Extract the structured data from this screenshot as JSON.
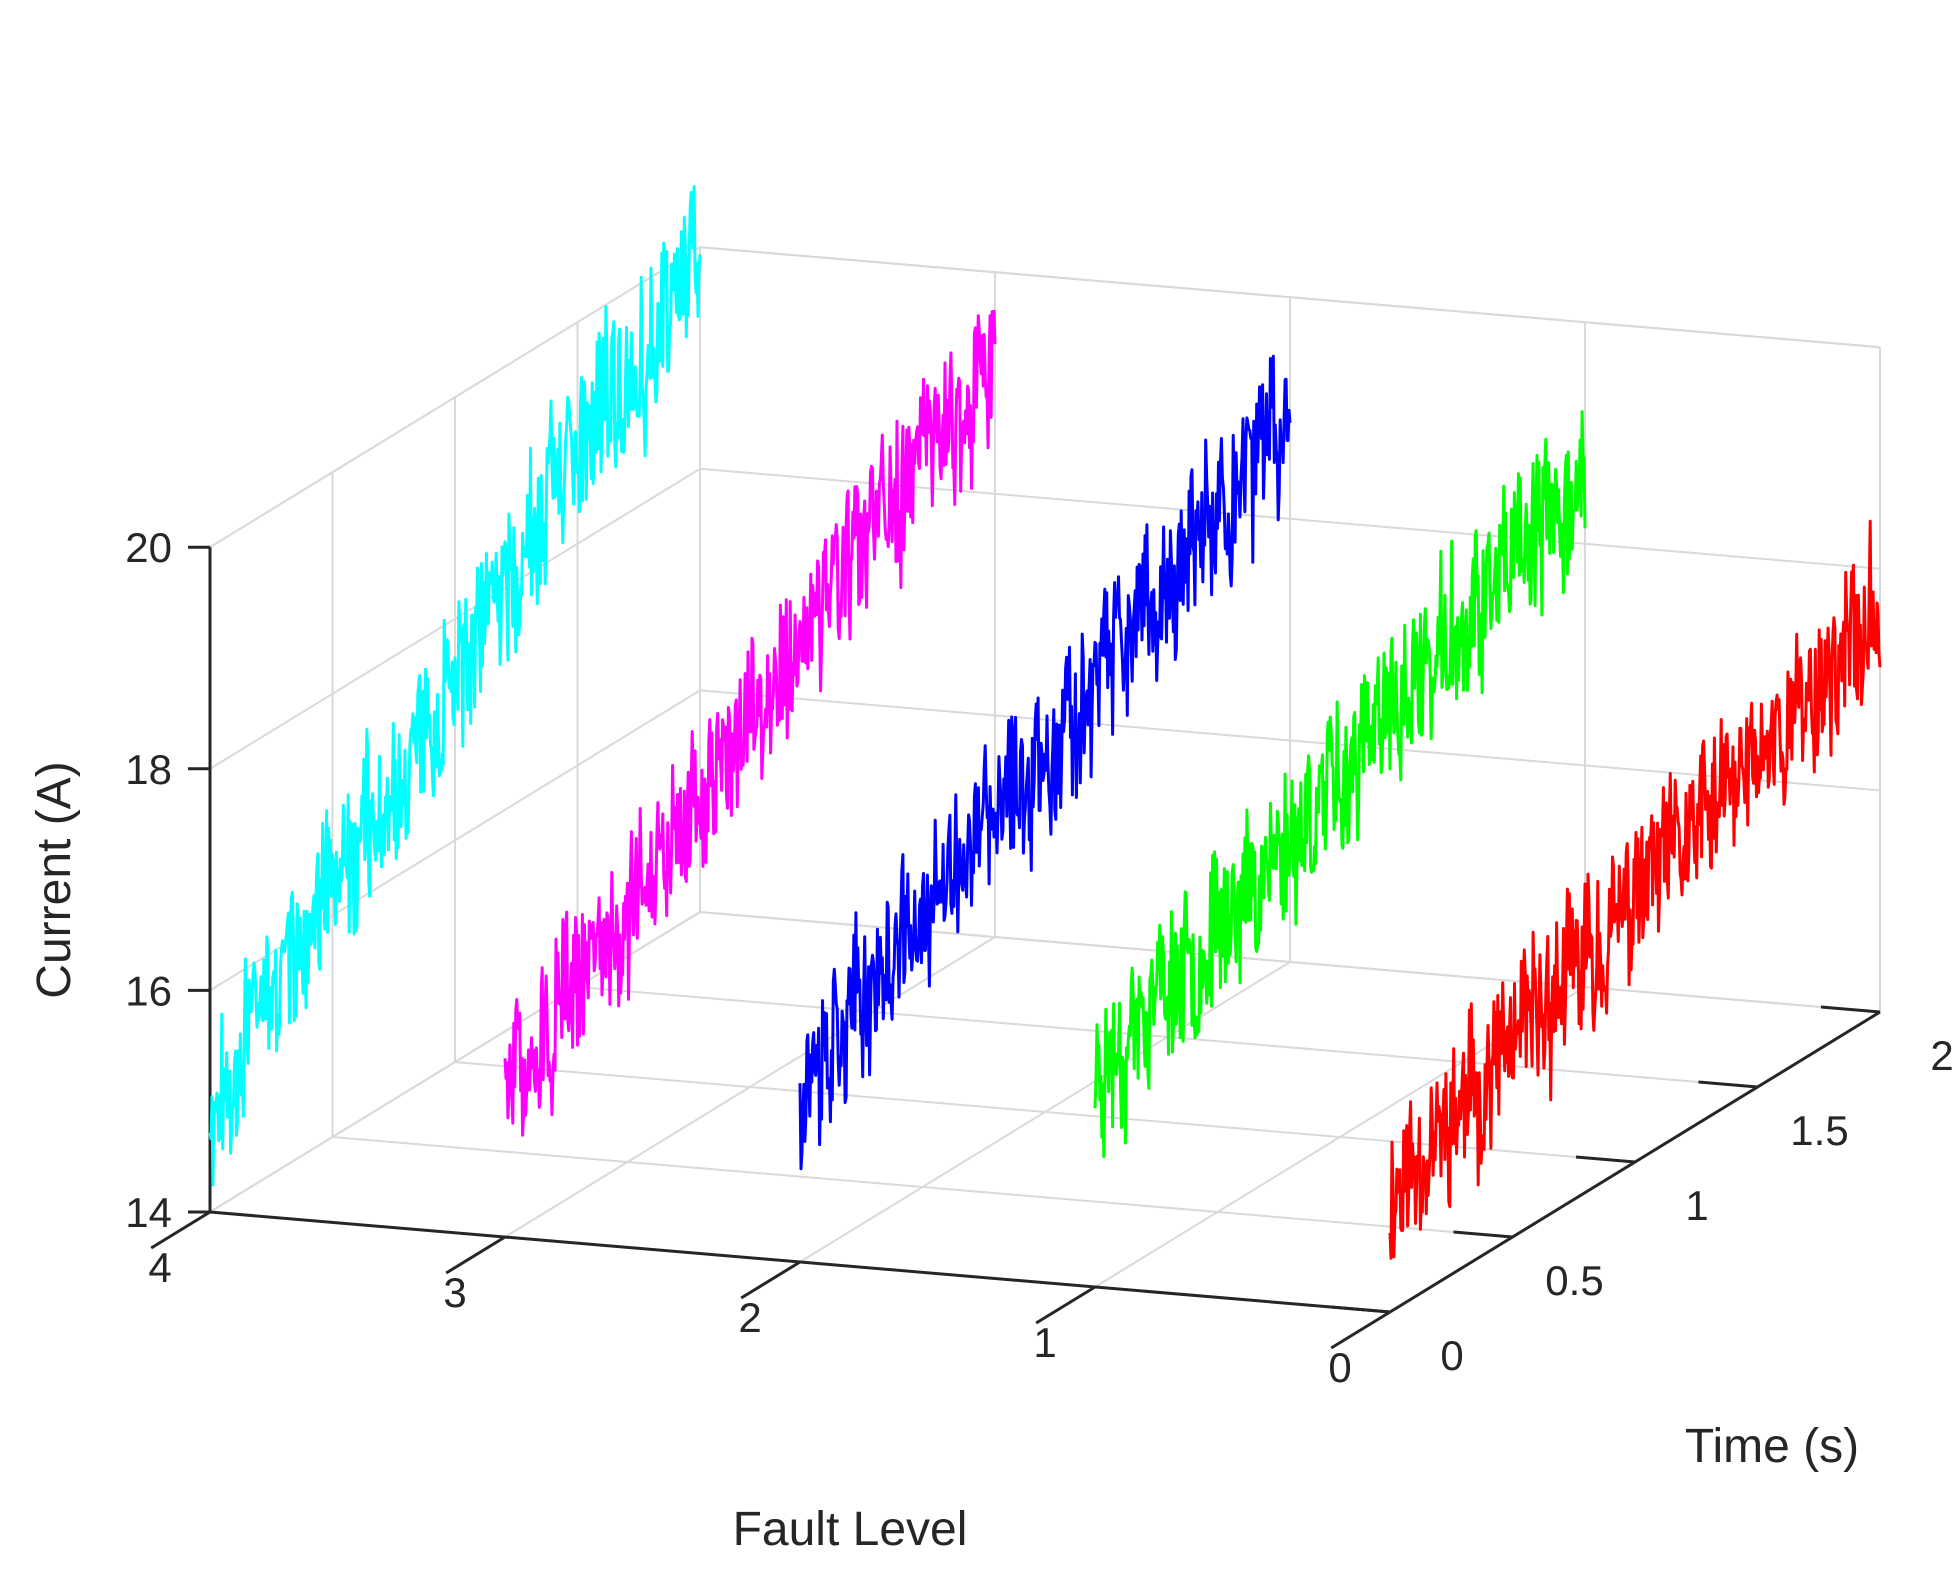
{
  "chart_data": {
    "type": "line",
    "view": "3d-waterfall",
    "title": "",
    "xlabel": "Fault Level",
    "ylabel": "Time (s)",
    "zlabel": "Current (A)",
    "xlim": [
      0,
      4
    ],
    "ylim": [
      0,
      2
    ],
    "zlim": [
      14,
      20
    ],
    "x_ticks": [
      "0",
      "1",
      "2",
      "3",
      "4"
    ],
    "y_ticks": [
      "0",
      "0.5",
      "1",
      "1.5",
      "2"
    ],
    "z_ticks": [
      "14",
      "16",
      "18",
      "20"
    ],
    "grid": true,
    "legend": "none",
    "series": [
      {
        "fault_level": 0,
        "color": "#ff0000",
        "time_range": [
          0,
          2
        ],
        "current_start": 15.1,
        "current_end": 17.6,
        "noise": 0.55,
        "seed": 11
      },
      {
        "fault_level": 1,
        "color": "#00ff00",
        "time_range": [
          0,
          2
        ],
        "current_start": 15.9,
        "current_end": 18.6,
        "noise": 0.55,
        "seed": 23
      },
      {
        "fault_level": 2,
        "color": "#0000ff",
        "time_range": [
          0,
          2
        ],
        "current_start": 15.6,
        "current_end": 18.9,
        "noise": 0.55,
        "seed": 37
      },
      {
        "fault_level": 3,
        "color": "#ff00ff",
        "time_range": [
          0,
          2
        ],
        "current_start": 15.3,
        "current_end": 19.3,
        "noise": 0.55,
        "seed": 51
      },
      {
        "fault_level": 4,
        "color": "#00ffff",
        "time_range": [
          0,
          2
        ],
        "current_start": 15.0,
        "current_end": 20.0,
        "noise": 0.55,
        "seed": 67
      }
    ]
  }
}
